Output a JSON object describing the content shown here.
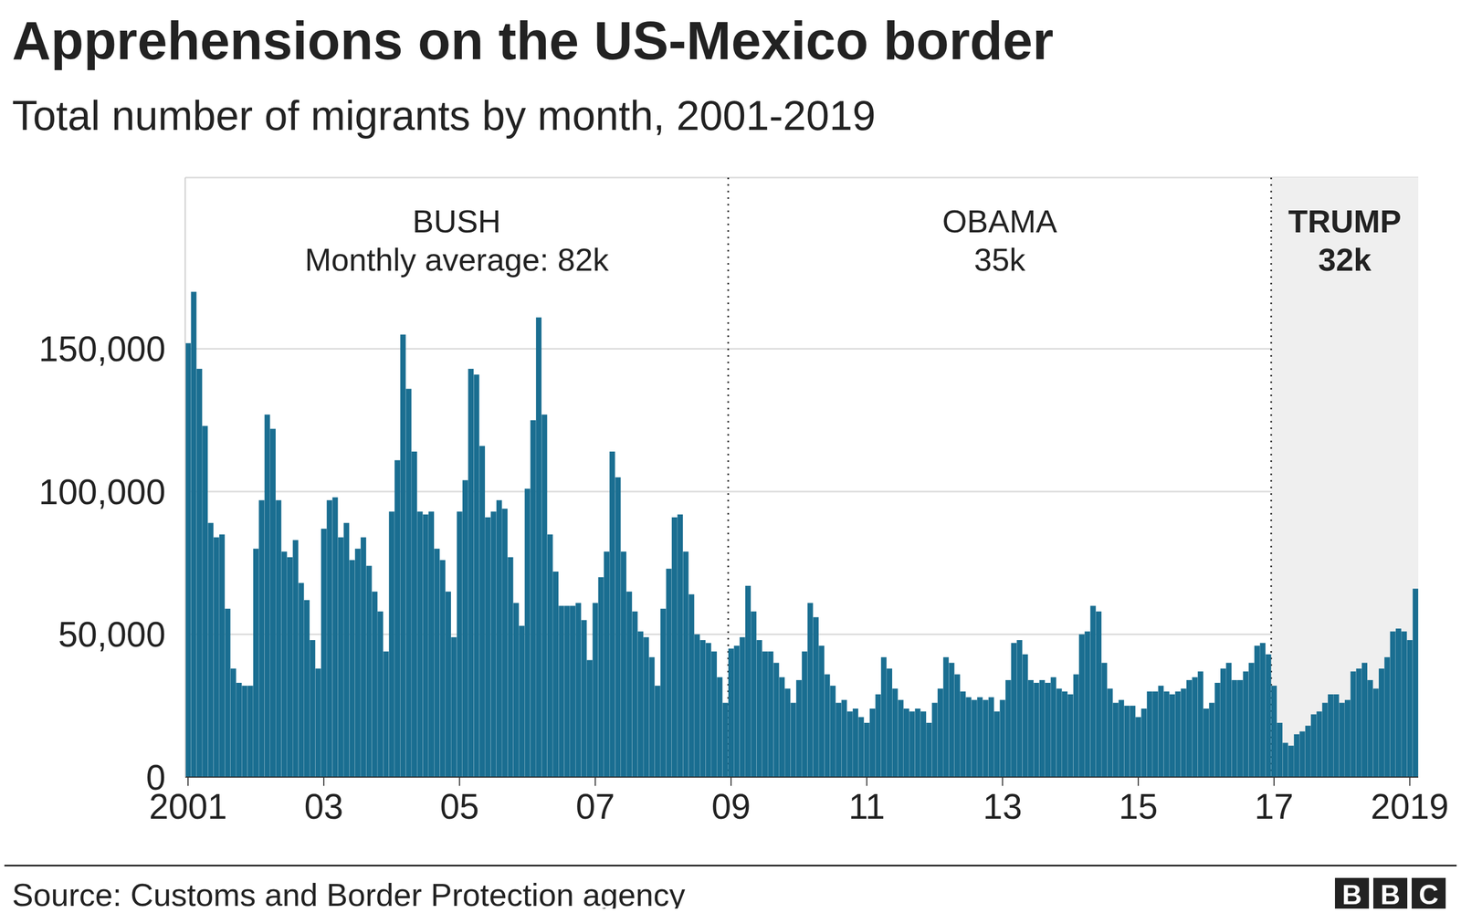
{
  "chart_data": {
    "type": "bar",
    "title": "Apprehensions on the US-Mexico border",
    "subtitle": "Total number of migrants by month, 2001-2019",
    "source": "Source: Customs and Border Protection agency",
    "logo": "BBC",
    "color": "#1a6e91",
    "grid": true,
    "ylim": [
      0,
      210000
    ],
    "yticks": [
      0,
      {
        "value": 50000,
        "label": "50,000"
      },
      {
        "value": 100000,
        "label": "100,000"
      },
      {
        "value": 150000,
        "label": "150,000"
      }
    ],
    "periods": [
      {
        "name": "BUSH",
        "label": "Monthly average: 82k",
        "start": 0,
        "end": 95
      },
      {
        "name": "OBAMA",
        "label": "35k",
        "start": 96,
        "end": 191
      },
      {
        "name": "TRUMP",
        "label": "32k",
        "start": 192,
        "end": 217,
        "color": "#efefef"
      }
    ],
    "categories": [
      "2001",
      null,
      null,
      null,
      null,
      null,
      null,
      null,
      null,
      null,
      null,
      null,
      null,
      null,
      null,
      null,
      null,
      null,
      null,
      null,
      null,
      null,
      null,
      null,
      "03",
      null,
      null,
      null,
      null,
      null,
      null,
      null,
      null,
      null,
      null,
      null,
      null,
      null,
      null,
      null,
      null,
      null,
      null,
      null,
      null,
      null,
      null,
      null,
      "05",
      null,
      null,
      null,
      null,
      null,
      null,
      null,
      null,
      null,
      null,
      null,
      null,
      null,
      null,
      null,
      null,
      null,
      null,
      null,
      null,
      null,
      null,
      null,
      "07",
      null,
      null,
      null,
      null,
      null,
      null,
      null,
      null,
      null,
      null,
      null,
      null,
      null,
      null,
      null,
      null,
      null,
      null,
      null,
      null,
      null,
      null,
      null,
      "09",
      null,
      null,
      null,
      null,
      null,
      null,
      null,
      null,
      null,
      null,
      null,
      null,
      null,
      null,
      null,
      null,
      null,
      null,
      null,
      null,
      null,
      null,
      null,
      "11",
      null,
      null,
      null,
      null,
      null,
      null,
      null,
      null,
      null,
      null,
      null,
      null,
      null,
      null,
      null,
      null,
      null,
      null,
      null,
      null,
      null,
      null,
      null,
      "13",
      null,
      null,
      null,
      null,
      null,
      null,
      null,
      null,
      null,
      null,
      null,
      null,
      null,
      null,
      null,
      null,
      null,
      null,
      null,
      null,
      null,
      null,
      null,
      "15",
      null,
      null,
      null,
      null,
      null,
      null,
      null,
      null,
      null,
      null,
      null,
      null,
      null,
      null,
      null,
      null,
      null,
      null,
      null,
      null,
      null,
      null,
      null,
      "17",
      null,
      null,
      null,
      null,
      null,
      null,
      null,
      null,
      null,
      null,
      null,
      null,
      null,
      null,
      null,
      null,
      null,
      null,
      null,
      null,
      null,
      null,
      null,
      "2019",
      null
    ],
    "values": [
      152000,
      170000,
      143000,
      123000,
      89000,
      84000,
      85000,
      59000,
      38000,
      33000,
      32000,
      32000,
      80000,
      97000,
      127000,
      122000,
      97000,
      79000,
      77000,
      83000,
      68000,
      62000,
      48000,
      38000,
      87000,
      97000,
      98000,
      84000,
      89000,
      76000,
      80000,
      84000,
      74000,
      65000,
      58000,
      44000,
      93000,
      111000,
      155000,
      136000,
      114000,
      93000,
      92000,
      93000,
      80000,
      76000,
      65000,
      49000,
      93000,
      104000,
      143000,
      141000,
      116000,
      91000,
      93000,
      97000,
      94000,
      77000,
      61000,
      53000,
      101000,
      125000,
      161000,
      127000,
      85000,
      72000,
      60000,
      60000,
      60000,
      61000,
      55000,
      41000,
      61000,
      70000,
      79000,
      114000,
      105000,
      79000,
      65000,
      58000,
      51000,
      49000,
      42000,
      32000,
      59000,
      73000,
      91000,
      92000,
      79000,
      64000,
      50000,
      48000,
      47000,
      44000,
      35000,
      26000,
      45000,
      46000,
      49000,
      67000,
      58000,
      48000,
      44000,
      44000,
      40000,
      35000,
      31000,
      26000,
      34000,
      44000,
      61000,
      56000,
      46000,
      36000,
      32000,
      26000,
      27000,
      23000,
      24000,
      21000,
      19000,
      24000,
      29000,
      42000,
      38000,
      31000,
      27000,
      24000,
      23000,
      24000,
      23000,
      19000,
      26000,
      31000,
      42000,
      40000,
      36000,
      30000,
      28000,
      27000,
      28000,
      27000,
      28000,
      23000,
      27000,
      34000,
      47000,
      48000,
      43000,
      34000,
      33000,
      34000,
      33000,
      35000,
      31000,
      30000,
      29000,
      36000,
      50000,
      51000,
      60000,
      58000,
      40000,
      31000,
      26000,
      27000,
      25000,
      25000,
      21000,
      24000,
      30000,
      30000,
      32000,
      30000,
      29000,
      30000,
      31000,
      34000,
      35000,
      37000,
      24000,
      26000,
      33000,
      38000,
      40000,
      34000,
      34000,
      37000,
      40000,
      46000,
      47000,
      43000,
      32000,
      19000,
      12000,
      11000,
      15000,
      16000,
      18000,
      22000,
      23000,
      26000,
      29000,
      29000,
      26000,
      27000,
      37000,
      38000,
      40000,
      34000,
      31000,
      38000,
      42000,
      51000,
      52000,
      51000,
      48000,
      66000
    ]
  }
}
